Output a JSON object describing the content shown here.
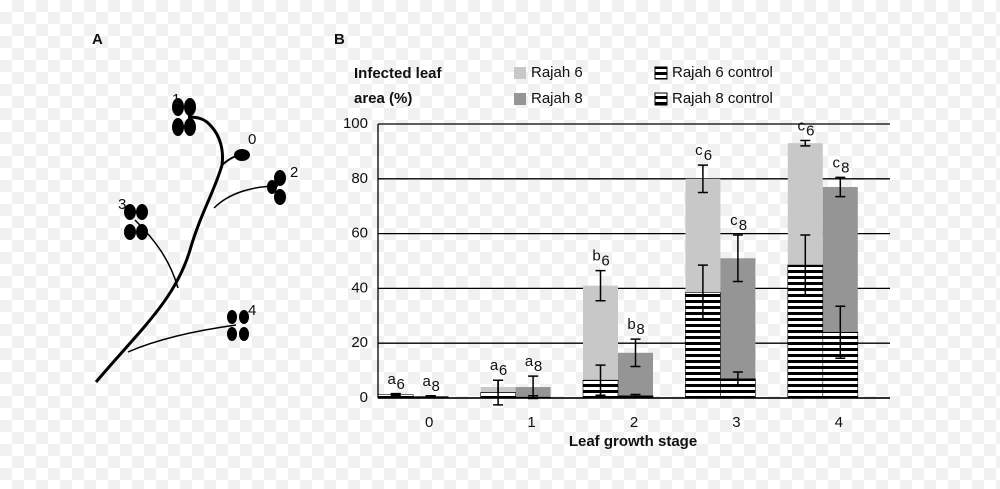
{
  "panel_a": {
    "label": "A",
    "node_labels": [
      "0",
      "1",
      "2",
      "3",
      "4"
    ]
  },
  "chart_data": {
    "type": "bar",
    "panel_label": "B",
    "ylabel": [
      "Infected leaf",
      "area (%)"
    ],
    "xlabel": "Leaf growth stage",
    "categories": [
      "0",
      "1",
      "2",
      "3",
      "4"
    ],
    "ylim": [
      0,
      100
    ],
    "yticks": [
      0,
      20,
      40,
      60,
      80,
      100
    ],
    "grid": true,
    "series": [
      {
        "name": "Rajah 6",
        "color": "#c8c8c8",
        "pattern": "solid",
        "position": "left",
        "values": [
          1,
          4,
          41,
          80,
          93
        ],
        "errors": [
          0.5,
          2.5,
          5.5,
          5,
          1
        ],
        "letters": [
          "a",
          "a",
          "b",
          "c",
          "c"
        ],
        "letter_subscript": "6"
      },
      {
        "name": "Rajah 8",
        "color": "#959595",
        "pattern": "solid",
        "position": "right",
        "values": [
          0.5,
          4,
          16.5,
          51,
          77
        ],
        "errors": [
          0.3,
          4,
          5,
          8.5,
          3.5
        ],
        "letters": [
          "a",
          "a",
          "b",
          "c",
          "c"
        ],
        "letter_subscript": "8"
      },
      {
        "name": "Rajah 6 control",
        "color": "#000000",
        "pattern": "hatch",
        "position": "left",
        "values": [
          1.2,
          2,
          6.5,
          38.5,
          48.5
        ],
        "errors": [
          0.4,
          4.5,
          5.5,
          10,
          11
        ]
      },
      {
        "name": "Rajah 8 control",
        "color": "#000000",
        "pattern": "hatch",
        "position": "right",
        "values": [
          0.5,
          0.3,
          0.8,
          7,
          24
        ],
        "errors": [
          0.2,
          0.5,
          0.5,
          2.5,
          9.5
        ]
      }
    ]
  }
}
